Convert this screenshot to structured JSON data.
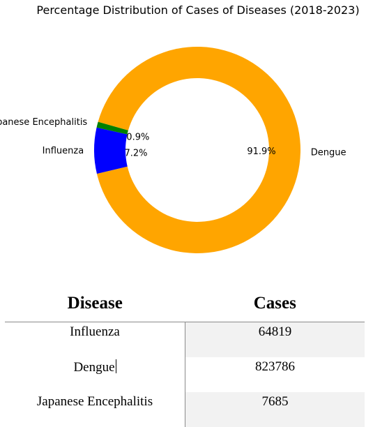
{
  "chart_data": {
    "type": "pie",
    "style": "donut",
    "title": "Percentage Distribution of Cases of Diseases (2018-2023)",
    "start_angle_deg": 167.4,
    "direction": "counterclockwise",
    "categories": [
      "Influenza",
      "Dengue",
      "Japanese Encephalitis"
    ],
    "values": [
      7.2,
      91.9,
      0.9
    ],
    "labels": [
      "7.2%",
      "91.9%",
      "0.9%"
    ],
    "colors": [
      "#0000ff",
      "#ffa500",
      "#008000"
    ]
  },
  "table": {
    "headers": [
      "Disease",
      "Cases"
    ],
    "rows": [
      {
        "disease": "Influenza",
        "cases": "64819"
      },
      {
        "disease": "Dengue",
        "cases": "823786"
      },
      {
        "disease": "Japanese Encephalitis",
        "cases": "7685"
      }
    ]
  }
}
